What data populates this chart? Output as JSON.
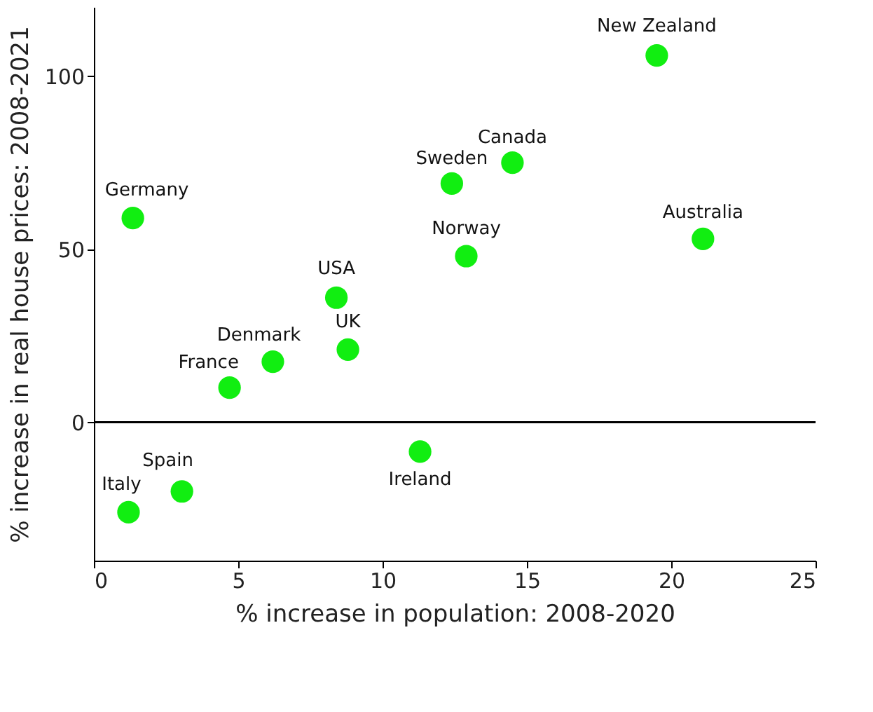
{
  "chart_data": {
    "type": "scatter",
    "xlabel": "% increase in population: 2008-2020",
    "ylabel": "% increase in real house prices: 2008-2021",
    "x": [
      1.35,
      1.2,
      3.05,
      4.7,
      6.2,
      8.4,
      8.8,
      11.3,
      12.4,
      14.5,
      12.9,
      19.5,
      21.1
    ],
    "series": [
      {
        "color": "#11ee11",
        "values": [
          59,
          -26,
          -20,
          10,
          17.5,
          36,
          21,
          -8.5,
          69,
          75,
          48,
          106,
          53
        ]
      }
    ],
    "xlim": [
      0,
      25
    ],
    "xticks": [
      0,
      5,
      10,
      15,
      20,
      25
    ],
    "ylim": [
      -40,
      120
    ],
    "yticks": [
      0,
      50,
      100
    ],
    "grid": false,
    "ref_lines": [
      {
        "axis": "y",
        "value": 0,
        "color": "#000000"
      }
    ],
    "annotations": [
      {
        "text": "Germany",
        "x": 1.35,
        "y": 59
      },
      {
        "text": "Italy",
        "x": 1.2,
        "y": -26
      },
      {
        "text": "Spain",
        "x": 3.05,
        "y": -20
      },
      {
        "text": "France",
        "x": 4.7,
        "y": 10
      },
      {
        "text": "Denmark",
        "x": 6.2,
        "y": 17.5
      },
      {
        "text": "USA",
        "x": 8.4,
        "y": 36
      },
      {
        "text": "UK",
        "x": 8.8,
        "y": 21
      },
      {
        "text": "Ireland",
        "x": 11.3,
        "y": -8.5
      },
      {
        "text": "Sweden",
        "x": 12.4,
        "y": 69
      },
      {
        "text": "Canada",
        "x": 14.5,
        "y": 75
      },
      {
        "text": "Norway",
        "x": 12.9,
        "y": 48
      },
      {
        "text": "New Zealand",
        "x": 19.5,
        "y": 106
      },
      {
        "text": "Australia",
        "x": 21.1,
        "y": 53
      }
    ]
  }
}
